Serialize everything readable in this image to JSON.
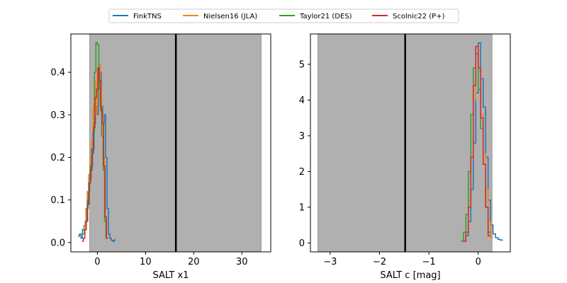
{
  "legend": {
    "placement": "top-center",
    "entries": [
      {
        "name": "FinkTNS",
        "color": "#1f77b4"
      },
      {
        "name": "Nielsen16 (JLA)",
        "color": "#ff7f0e"
      },
      {
        "name": "Taylor21 (DES)",
        "color": "#2ca02c"
      },
      {
        "name": "Scolnic22 (P+)",
        "color": "#d62728"
      }
    ]
  },
  "chart_data": [
    {
      "type": "histogram",
      "xlabel": "SALT x1",
      "ylabel": "",
      "xlim": [
        -5.5,
        36
      ],
      "ylim": [
        -0.022,
        0.49
      ],
      "xticks": [
        0,
        10,
        20,
        30
      ],
      "yticks": [
        0.0,
        0.1,
        0.2,
        0.3,
        0.4
      ],
      "ytick_labels": [
        "0.0",
        "0.1",
        "0.2",
        "0.3",
        "0.4"
      ],
      "shaded_region": {
        "x0": -1.6,
        "x1": 34,
        "color": "#b0b0b0"
      },
      "vline": {
        "x": 16.3,
        "color": "#000000"
      },
      "series": [
        {
          "name": "FinkTNS",
          "color": "#1f77b4",
          "edges": [
            -4.0,
            -3.7,
            -3.4,
            -3.1,
            -2.8,
            -2.5,
            -2.2,
            -1.9,
            -1.6,
            -1.3,
            -1.0,
            -0.7,
            -0.4,
            -0.1,
            0.2,
            0.5,
            0.8,
            1.1,
            1.4,
            1.7,
            2.0,
            2.3,
            2.6,
            2.9,
            3.2,
            3.5,
            3.8
          ],
          "values": [
            0.015,
            0.02,
            0.01,
            0.03,
            0.04,
            0.05,
            0.08,
            0.12,
            0.15,
            0.18,
            0.22,
            0.28,
            0.32,
            0.3,
            0.36,
            0.4,
            0.32,
            0.28,
            0.3,
            0.2,
            0.08,
            0.02,
            0.01,
            0.005,
            0.003,
            0.006
          ]
        },
        {
          "name": "Nielsen16 (JLA)",
          "color": "#ff7f0e",
          "edges": [
            -3.0,
            -2.7,
            -2.4,
            -2.1,
            -1.8,
            -1.5,
            -1.2,
            -0.9,
            -0.6,
            -0.3,
            0.0,
            0.3,
            0.6,
            0.9,
            1.2,
            1.5,
            1.8,
            2.1
          ],
          "values": [
            0.02,
            0.04,
            0.08,
            0.12,
            0.16,
            0.2,
            0.24,
            0.32,
            0.38,
            0.3,
            0.4,
            0.42,
            0.36,
            0.3,
            0.2,
            0.06,
            0.015
          ]
        },
        {
          "name": "Taylor21 (DES)",
          "color": "#2ca02c",
          "edges": [
            -3.0,
            -2.7,
            -2.4,
            -2.1,
            -1.8,
            -1.5,
            -1.2,
            -0.9,
            -0.6,
            -0.3,
            0.0,
            0.3,
            0.6,
            0.9,
            1.2,
            1.5,
            1.8,
            2.1
          ],
          "values": [
            0.02,
            0.03,
            0.05,
            0.1,
            0.14,
            0.18,
            0.22,
            0.26,
            0.4,
            0.47,
            0.465,
            0.36,
            0.32,
            0.25,
            0.17,
            0.05,
            0.01
          ]
        },
        {
          "name": "Scolnic22 (P+)",
          "color": "#d62728",
          "edges": [
            -3.2,
            -2.9,
            -2.6,
            -2.3,
            -2.0,
            -1.7,
            -1.4,
            -1.1,
            -0.8,
            -0.5,
            -0.2,
            0.1,
            0.4,
            0.7,
            1.0,
            1.3,
            1.6,
            1.9,
            2.2
          ],
          "values": [
            0.003,
            0.01,
            0.03,
            0.05,
            0.09,
            0.14,
            0.17,
            0.21,
            0.27,
            0.34,
            0.36,
            0.41,
            0.38,
            0.31,
            0.28,
            0.18,
            0.06,
            0.01
          ]
        }
      ]
    },
    {
      "type": "histogram",
      "xlabel": "SALT c [mag]",
      "ylabel": "",
      "xlim": [
        -3.4,
        0.65
      ],
      "ylim": [
        -0.25,
        5.85
      ],
      "xticks": [
        -3,
        -2,
        -1,
        0
      ],
      "xtick_labels": [
        "−3",
        "−2",
        "−1",
        "0"
      ],
      "yticks": [
        0,
        1,
        2,
        3,
        4,
        5
      ],
      "ytick_labels": [
        "0",
        "1",
        "2",
        "3",
        "4",
        "5"
      ],
      "shaded_region": {
        "x0": -3.25,
        "x1": 0.28,
        "color": "#b0b0b0"
      },
      "vline": {
        "x": -1.48,
        "color": "#000000"
      },
      "series": [
        {
          "name": "FinkTNS",
          "color": "#1f77b4",
          "edges": [
            -0.3,
            -0.25,
            -0.2,
            -0.15,
            -0.1,
            -0.05,
            0.0,
            0.05,
            0.1,
            0.15,
            0.2,
            0.25,
            0.3,
            0.35,
            0.4,
            0.45,
            0.5
          ],
          "values": [
            0.05,
            0.2,
            0.6,
            1.5,
            2.8,
            4.2,
            5.6,
            4.6,
            3.8,
            2.4,
            1.2,
            0.5,
            0.25,
            0.15,
            0.1,
            0.08
          ]
        },
        {
          "name": "Nielsen16 (JLA)",
          "color": "#ff7f0e",
          "edges": [
            -0.3,
            -0.25,
            -0.2,
            -0.15,
            -0.1,
            -0.05,
            0.0,
            0.05,
            0.1,
            0.15,
            0.2,
            0.25,
            0.3
          ],
          "values": [
            0.1,
            0.4,
            1.2,
            2.5,
            4.0,
            5.2,
            4.8,
            3.6,
            2.5,
            1.5,
            0.6,
            0.15
          ]
        },
        {
          "name": "Taylor21 (DES)",
          "color": "#2ca02c",
          "edges": [
            -0.35,
            -0.3,
            -0.25,
            -0.2,
            -0.15,
            -0.1,
            -0.05,
            0.0,
            0.05,
            0.1,
            0.15,
            0.2,
            0.25
          ],
          "values": [
            0.05,
            0.3,
            0.8,
            2.0,
            3.6,
            4.9,
            5.3,
            4.3,
            3.2,
            2.2,
            1.0,
            0.3
          ]
        },
        {
          "name": "Scolnic22 (P+)",
          "color": "#d62728",
          "edges": [
            -0.3,
            -0.25,
            -0.2,
            -0.15,
            -0.1,
            -0.05,
            0.0,
            0.05,
            0.1,
            0.15,
            0.2,
            0.25
          ],
          "values": [
            0.05,
            0.3,
            1.0,
            2.4,
            4.4,
            5.5,
            4.9,
            3.5,
            2.2,
            1.0,
            0.2
          ]
        }
      ]
    }
  ]
}
